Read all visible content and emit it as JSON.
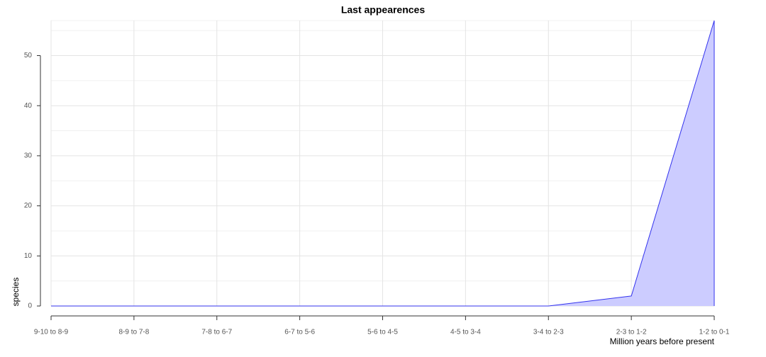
{
  "chart_data": {
    "type": "area",
    "title": "Last appearences",
    "x_label": "Million years before present",
    "y_label": "species",
    "categories": [
      "9-10 to 8-9",
      "8-9 to 7-8",
      "7-8 to 6-7",
      "6-7 to 5-6",
      "5-6 to 4-5",
      "4-5 to 3-4",
      "3-4 to 2-3",
      "2-3 to 1-2",
      "1-2 to 0-1"
    ],
    "series": [
      {
        "name": "species",
        "color": "#3333ee",
        "fill": "#ccccff",
        "values": [
          0,
          0,
          0,
          0,
          0,
          0,
          0,
          2,
          57
        ]
      }
    ],
    "ylim": [
      0,
      57
    ],
    "yticks": [
      0,
      10,
      20,
      30,
      40,
      50
    ],
    "grid": true
  }
}
